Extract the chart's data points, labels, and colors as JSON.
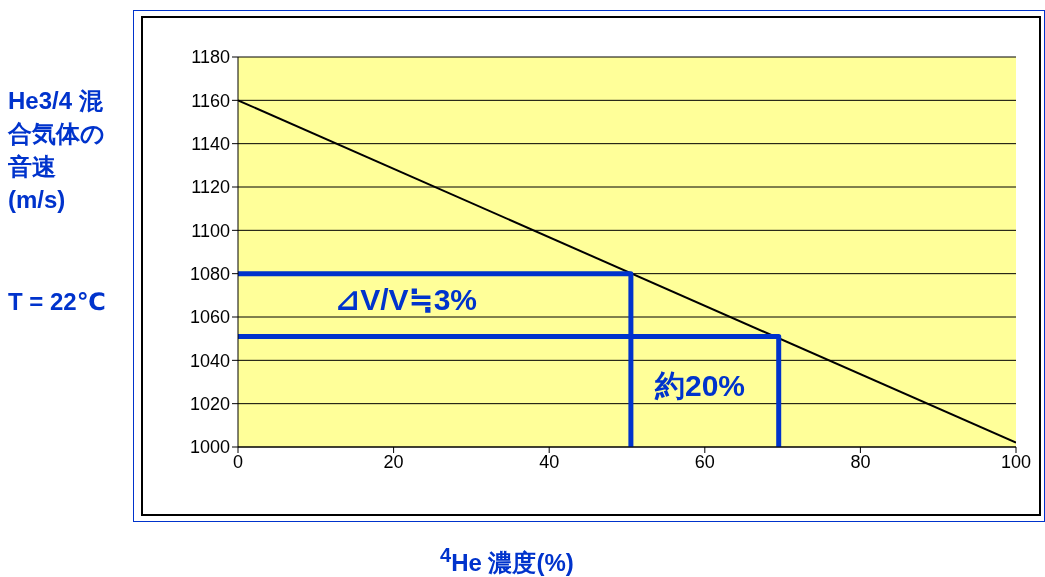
{
  "chart_data": {
    "type": "line",
    "xlabel": "$^{4}$He 濃度(%)",
    "ylabel": "He3/4 混合気体の音速 (m/s)",
    "xlim": [
      0,
      100
    ],
    "xticks": [
      0,
      20,
      40,
      60,
      80,
      100
    ],
    "ylim": [
      1000,
      1180
    ],
    "yticks": [
      1000,
      1020,
      1040,
      1060,
      1080,
      1100,
      1120,
      1140,
      1160,
      1180
    ],
    "grid": "y",
    "marker": "none",
    "line_style": "solid",
    "series": [
      {
        "color": "#000000",
        "x": [
          0,
          100
        ],
        "values": [
          1160,
          1002
        ]
      },
      {
        "color": "#0033cc",
        "x": [
          0,
          50.5,
          50.5
        ],
        "values": [
          1080,
          1080,
          1000
        ]
      },
      {
        "color": "#0033cc",
        "x": [
          0,
          69.5,
          69.5
        ],
        "values": [
          1051,
          1051,
          1000
        ]
      }
    ],
    "annotations": [
      "T = 22℃",
      "⊿V/V≒3%",
      "約20%"
    ]
  }
}
